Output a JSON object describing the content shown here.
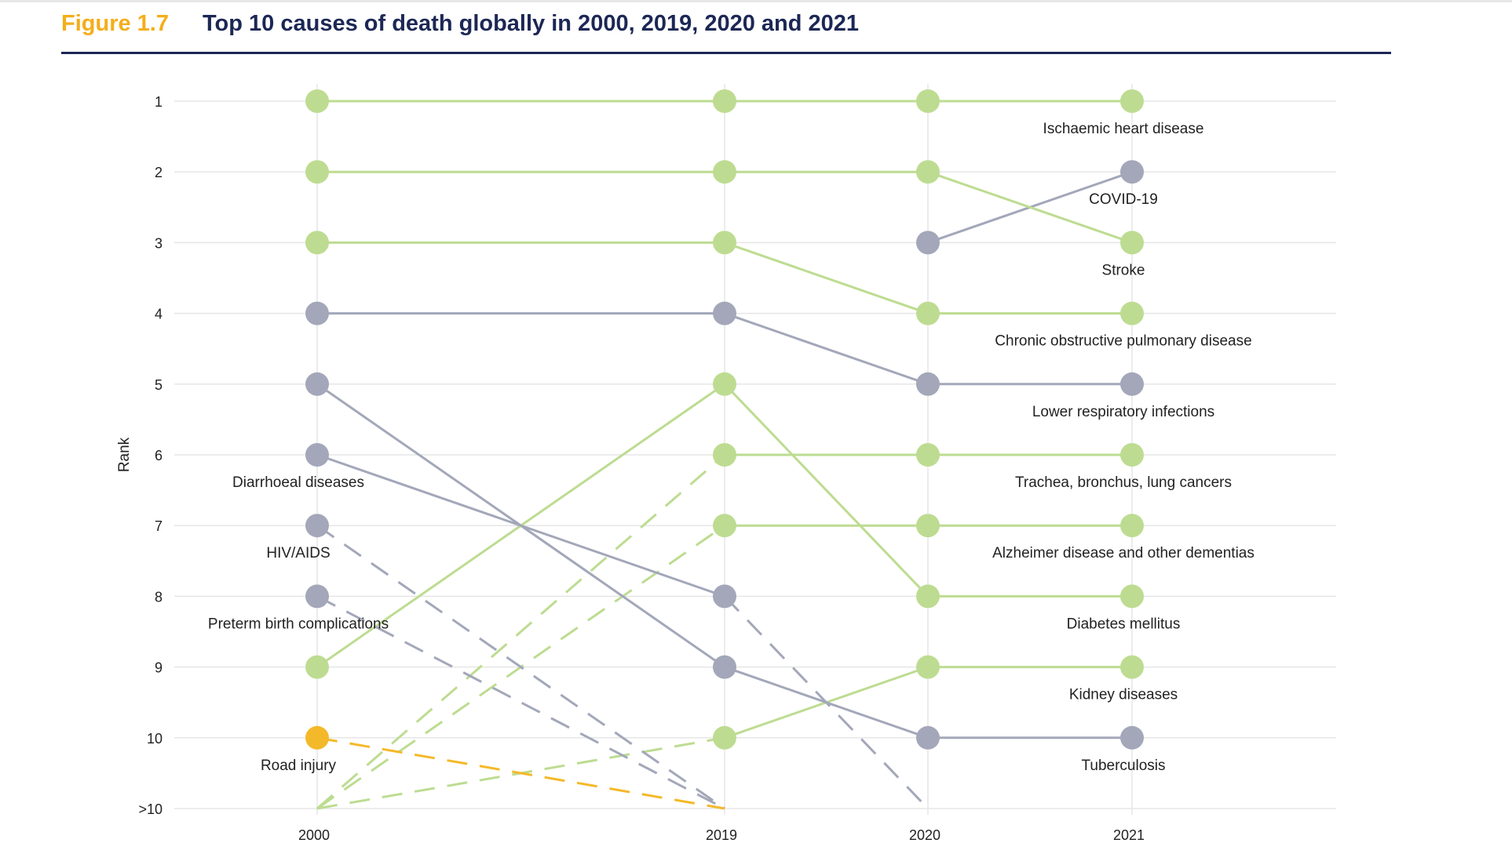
{
  "header": {
    "figure_number": "Figure 1.7",
    "title": "Top 10 causes of death globally in 2000, 2019, 2020 and 2021"
  },
  "colors": {
    "ncd": "#bddc91",
    "communicable": "#a3a7b9",
    "injury": "#f4b92a",
    "grid": "#e6e6e6",
    "text": "#222222"
  },
  "chart_data": {
    "type": "line",
    "ylabel": "Rank",
    "xlabel": "",
    "x": [
      "2000",
      "2019",
      "2020",
      "2021"
    ],
    "y_ticks": [
      "1",
      "2",
      "3",
      "4",
      "5",
      "6",
      "7",
      "8",
      "9",
      "10",
      ">10"
    ],
    "y_range": [
      1,
      11
    ],
    "outside_top_10_value": 11,
    "series": [
      {
        "name": "Ischaemic heart disease",
        "category": "ncd",
        "ranks": [
          1,
          1,
          1,
          1
        ],
        "label_at": "2021"
      },
      {
        "name": "COVID-19",
        "category": "communicable",
        "ranks": [
          null,
          null,
          3,
          2
        ],
        "label_at": "2021"
      },
      {
        "name": "Stroke",
        "category": "ncd",
        "ranks": [
          2,
          2,
          2,
          3
        ],
        "label_at": "2021"
      },
      {
        "name": "Chronic obstructive pulmonary disease",
        "category": "ncd",
        "ranks": [
          3,
          3,
          4,
          4
        ],
        "label_at": "2021"
      },
      {
        "name": "Lower respiratory infections",
        "category": "communicable",
        "ranks": [
          4,
          4,
          5,
          5
        ],
        "label_at": "2021"
      },
      {
        "name": "Trachea, bronchus, lung cancers",
        "category": "ncd",
        "ranks": [
          11,
          6,
          6,
          6
        ],
        "label_at": "2021"
      },
      {
        "name": "Alzheimer disease and other dementias",
        "category": "ncd",
        "ranks": [
          11,
          7,
          7,
          7
        ],
        "label_at": "2021"
      },
      {
        "name": "Diabetes mellitus",
        "category": "ncd",
        "ranks": [
          9,
          5,
          8,
          8
        ],
        "label_at": "2021"
      },
      {
        "name": "Kidney diseases",
        "category": "ncd",
        "ranks": [
          11,
          10,
          9,
          9
        ],
        "label_at": "2021"
      },
      {
        "name": "Tuberculosis",
        "category": "communicable",
        "ranks": [
          5,
          9,
          10,
          10
        ],
        "label_at": "2021"
      },
      {
        "name": "Diarrhoeal diseases",
        "category": "communicable",
        "ranks": [
          6,
          8,
          11,
          null
        ],
        "label_at": "2000"
      },
      {
        "name": "HIV/AIDS",
        "category": "communicable",
        "ranks": [
          7,
          11,
          null,
          null
        ],
        "label_at": "2000"
      },
      {
        "name": "Preterm birth complications",
        "category": "communicable",
        "ranks": [
          8,
          11,
          null,
          null
        ],
        "label_at": "2000"
      },
      {
        "name": "Road injury",
        "category": "injury",
        "ranks": [
          10,
          11,
          null,
          null
        ],
        "label_at": "2000"
      }
    ]
  }
}
